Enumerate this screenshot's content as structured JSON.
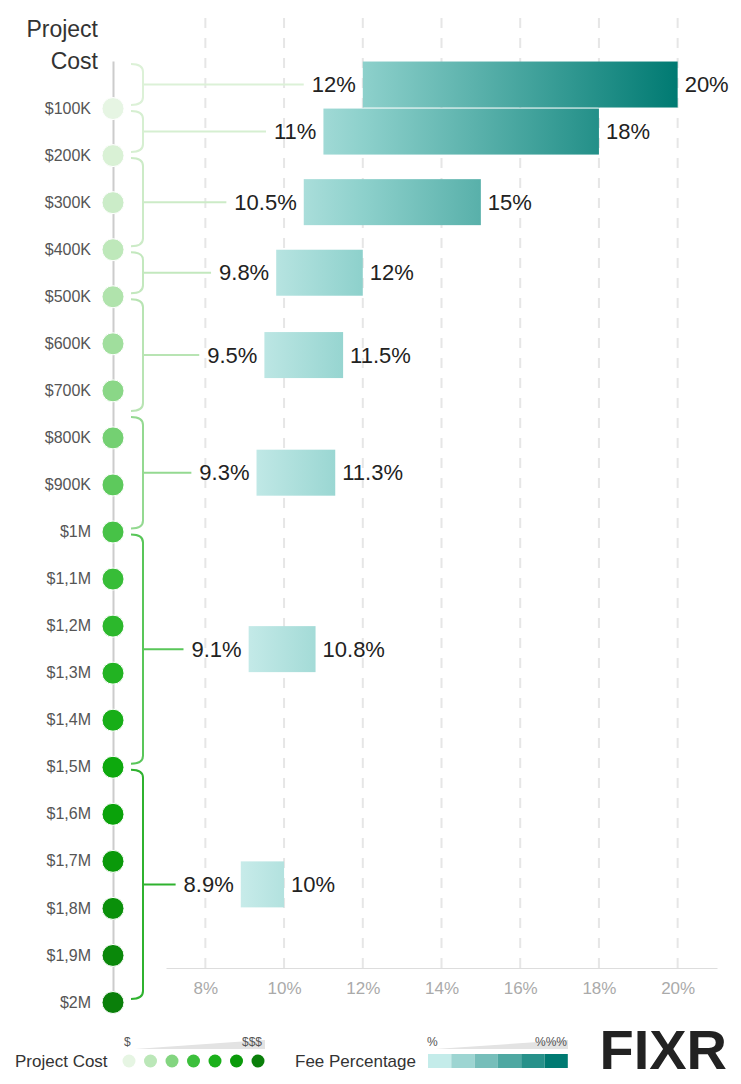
{
  "chart_data": {
    "type": "bar",
    "orientation": "horizontal",
    "y_label": "Project Cost",
    "color": "#007a72",
    "grid": true,
    "data_labels": true,
    "xlim": [
      7,
      21
    ],
    "xticks": [
      {
        "value": 8,
        "label": "8%"
      },
      {
        "value": 10,
        "label": "10%"
      },
      {
        "value": 12,
        "label": "12%"
      },
      {
        "value": 14,
        "label": "14%"
      },
      {
        "value": 16,
        "label": "16%"
      },
      {
        "value": 18,
        "label": "18%"
      },
      {
        "value": 20,
        "label": "20%"
      }
    ],
    "ylim": [
      0,
      2000000
    ],
    "yticks": [
      {
        "value": 100000,
        "label": "$100K"
      },
      {
        "value": 200000,
        "label": "$200K"
      },
      {
        "value": 300000,
        "label": "$300K"
      },
      {
        "value": 400000,
        "label": "$400K"
      },
      {
        "value": 500000,
        "label": "$500K"
      },
      {
        "value": 600000,
        "label": "$600K"
      },
      {
        "value": 700000,
        "label": "$700K"
      },
      {
        "value": 800000,
        "label": "$800K"
      },
      {
        "value": 900000,
        "label": "$900K"
      },
      {
        "value": 1000000,
        "label": "$1M"
      },
      {
        "value": 1100000,
        "label": "$1,1M"
      },
      {
        "value": 1200000,
        "label": "$1,2M"
      },
      {
        "value": 1300000,
        "label": "$1,3M"
      },
      {
        "value": 1400000,
        "label": "$1,4M"
      },
      {
        "value": 1500000,
        "label": "$1,5M"
      },
      {
        "value": 1600000,
        "label": "$1,6M"
      },
      {
        "value": 1700000,
        "label": "$1,7M"
      },
      {
        "value": 1800000,
        "label": "$1,8M"
      },
      {
        "value": 1900000,
        "label": "$1,9M"
      },
      {
        "value": 2000000,
        "label": "$2M"
      }
    ],
    "cost_low": [
      0,
      100000,
      200000,
      400000,
      500000,
      750000,
      1000000,
      1500000
    ],
    "cost_high": [
      100000,
      200000,
      400000,
      500000,
      750000,
      1000000,
      1500000,
      2000000
    ],
    "low": [
      12,
      11,
      10.5,
      9.8,
      9.5,
      9.3,
      9.1,
      8.9
    ],
    "high": [
      20,
      18,
      15,
      12,
      11.5,
      11.3,
      10.8,
      10
    ],
    "low_labels": [
      "12%",
      "11%",
      "10.5%",
      "9.8%",
      "9.5%",
      "9.3%",
      "9.1%",
      "8.9%"
    ],
    "high_labels": [
      "20%",
      "18%",
      "15%",
      "12%",
      "11.5%",
      "11.3%",
      "10.8%",
      "10%"
    ],
    "keys": [
      {
        "title": "Project Cost",
        "low": "$",
        "high": "$$$"
      },
      {
        "title": "Fee Percentage",
        "low": "%",
        "high": "%%%"
      }
    ],
    "logo": "FIXR"
  }
}
